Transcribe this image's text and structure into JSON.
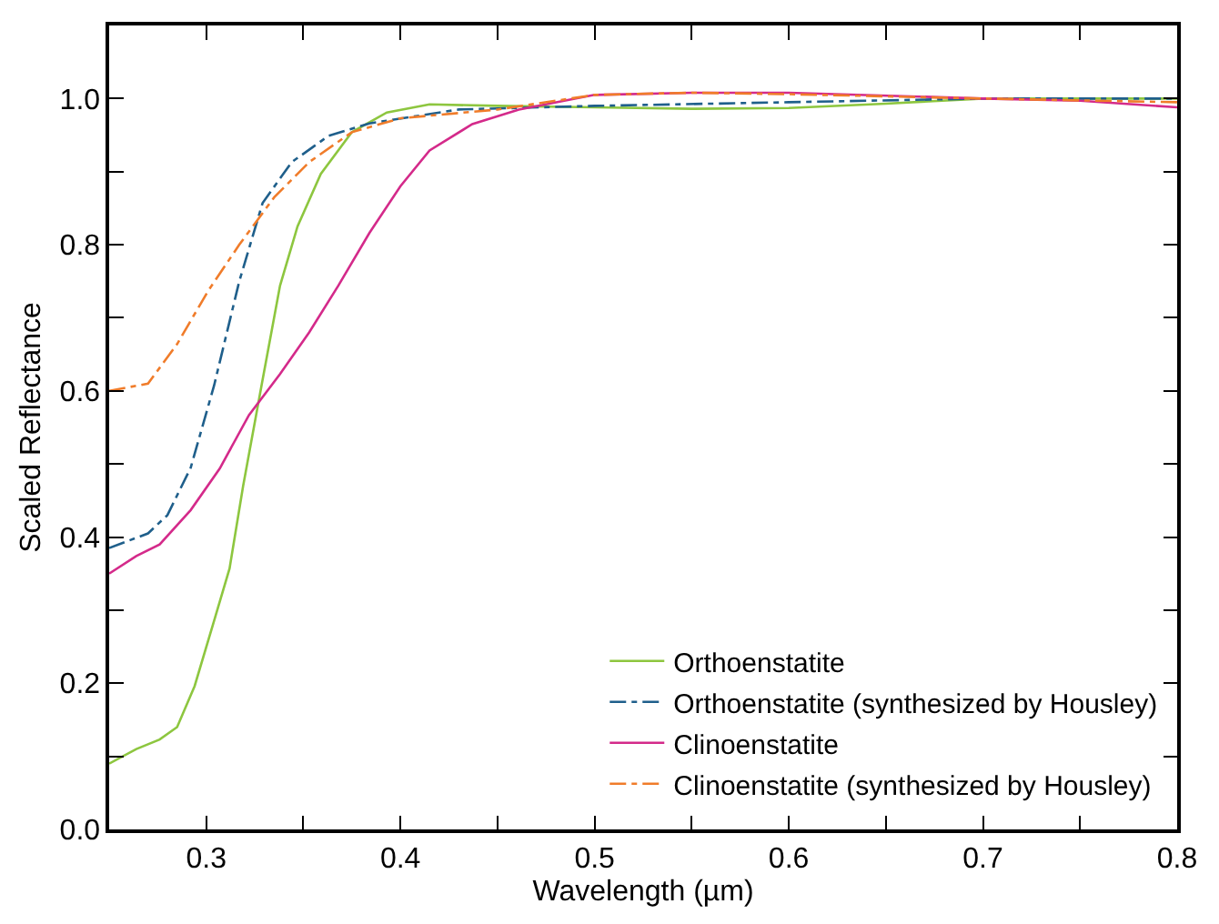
{
  "chart_data": {
    "type": "line",
    "xlabel": "Wavelength (µm)",
    "ylabel": "Scaled Reflectance",
    "xlim": [
      0.25,
      0.8
    ],
    "ylim": [
      0,
      1.1
    ],
    "xticks": [
      {
        "value": 0.25,
        "label": null
      },
      {
        "value": 0.3,
        "label": "0.3"
      },
      {
        "value": 0.35,
        "label": null
      },
      {
        "value": 0.4,
        "label": "0.4"
      },
      {
        "value": 0.45,
        "label": null
      },
      {
        "value": 0.5,
        "label": "0.5"
      },
      {
        "value": 0.55,
        "label": null
      },
      {
        "value": 0.6,
        "label": "0.6"
      },
      {
        "value": 0.65,
        "label": null
      },
      {
        "value": 0.7,
        "label": "0.7"
      },
      {
        "value": 0.75,
        "label": null
      },
      {
        "value": 0.8,
        "label": "0.8"
      }
    ],
    "yticks": [
      {
        "value": 0,
        "label": "0.0"
      },
      {
        "value": 0.1,
        "label": null
      },
      {
        "value": 0.2,
        "label": "0.2"
      },
      {
        "value": 0.3,
        "label": null
      },
      {
        "value": 0.4,
        "label": "0.4"
      },
      {
        "value": 0.5,
        "label": null
      },
      {
        "value": 0.6,
        "label": "0.6"
      },
      {
        "value": 0.7,
        "label": null
      },
      {
        "value": 0.8,
        "label": "0.8"
      },
      {
        "value": 0.9,
        "label": null
      },
      {
        "value": 1,
        "label": "1.0"
      }
    ],
    "grid": false,
    "legend": "bottom right",
    "marker": "none",
    "series": [
      {
        "name": "Orthoenstatite",
        "color": "#8dc63f",
        "line_style": "solid",
        "x": [
          0.25,
          0.264,
          0.276,
          0.285,
          0.294,
          0.304,
          0.312,
          0.319,
          0.329,
          0.338,
          0.347,
          0.359,
          0.375,
          0.393,
          0.415,
          0.45,
          0.5,
          0.55,
          0.6,
          0.65,
          0.7,
          0.75,
          0.8
        ],
        "values": [
          0.09,
          0.11,
          0.123,
          0.14,
          0.196,
          0.285,
          0.357,
          0.47,
          0.615,
          0.744,
          0.825,
          0.897,
          0.954,
          0.981,
          0.992,
          0.99,
          0.988,
          0.986,
          0.987,
          0.993,
          1.0,
          1.0,
          1.0
        ]
      },
      {
        "name": "Orthoenstatite (synthesized by Housley)",
        "color": "#1f5f8b",
        "line_style": "dashdot",
        "x": [
          0.25,
          0.27,
          0.28,
          0.292,
          0.304,
          0.317,
          0.329,
          0.344,
          0.363,
          0.384,
          0.43,
          0.5,
          0.6,
          0.7,
          0.8
        ],
        "values": [
          0.385,
          0.405,
          0.43,
          0.495,
          0.607,
          0.75,
          0.857,
          0.913,
          0.949,
          0.966,
          0.985,
          0.99,
          0.995,
          1.0,
          1.0
        ]
      },
      {
        "name": "Clinoenstatite",
        "color": "#d42a8a",
        "line_style": "solid",
        "x": [
          0.25,
          0.264,
          0.276,
          0.292,
          0.307,
          0.322,
          0.338,
          0.353,
          0.368,
          0.384,
          0.4,
          0.415,
          0.437,
          0.461,
          0.5,
          0.55,
          0.6,
          0.7,
          0.75,
          0.8
        ],
        "values": [
          0.35,
          0.374,
          0.39,
          0.437,
          0.494,
          0.567,
          0.623,
          0.68,
          0.744,
          0.816,
          0.88,
          0.929,
          0.965,
          0.985,
          1.005,
          1.008,
          1.008,
          1.0,
          0.997,
          0.988
        ]
      },
      {
        "name": "Clinoenstatite (synthesized by Housley)",
        "color": "#f07c2a",
        "line_style": "dashdot",
        "x": [
          0.25,
          0.27,
          0.285,
          0.301,
          0.317,
          0.335,
          0.353,
          0.375,
          0.4,
          0.45,
          0.5,
          0.55,
          0.6,
          0.7,
          0.8
        ],
        "values": [
          0.6,
          0.61,
          0.664,
          0.737,
          0.8,
          0.865,
          0.913,
          0.954,
          0.973,
          0.985,
          1.005,
          1.008,
          1.006,
          1.0,
          0.995
        ]
      }
    ]
  }
}
